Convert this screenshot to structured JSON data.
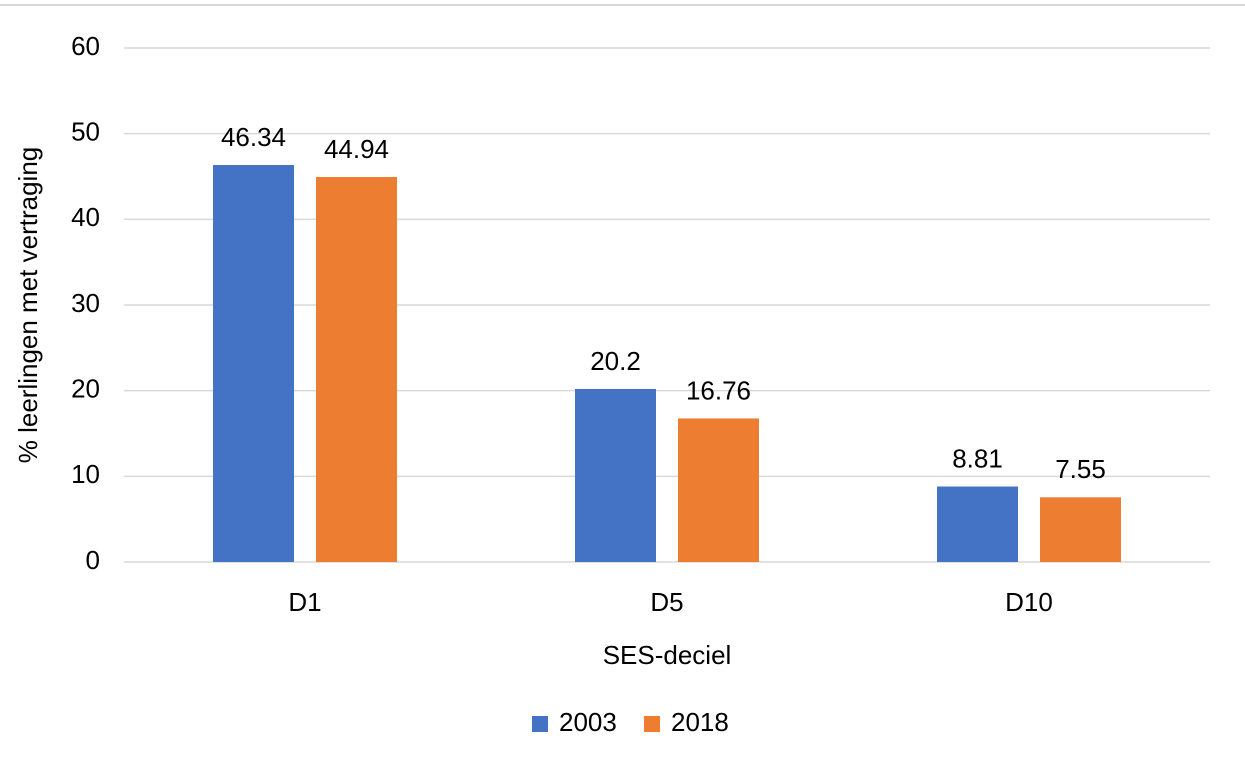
{
  "chart_data": {
    "type": "bar",
    "x_label": "SES-deciel",
    "y_label": "% leerlingen met vertraging",
    "categories": [
      "D1",
      "D5",
      "D10"
    ],
    "series": [
      {
        "name": "2003",
        "color": "#4472c4",
        "values": [
          46.34,
          20.2,
          8.81
        ]
      },
      {
        "name": "2018",
        "color": "#ed7d31",
        "values": [
          44.94,
          16.76,
          7.55
        ]
      }
    ],
    "ylim": [
      0,
      60
    ],
    "yticks": [
      0,
      10,
      20,
      30,
      40,
      50,
      60
    ],
    "grid": true,
    "legend": "bottom",
    "data_labels": true
  }
}
